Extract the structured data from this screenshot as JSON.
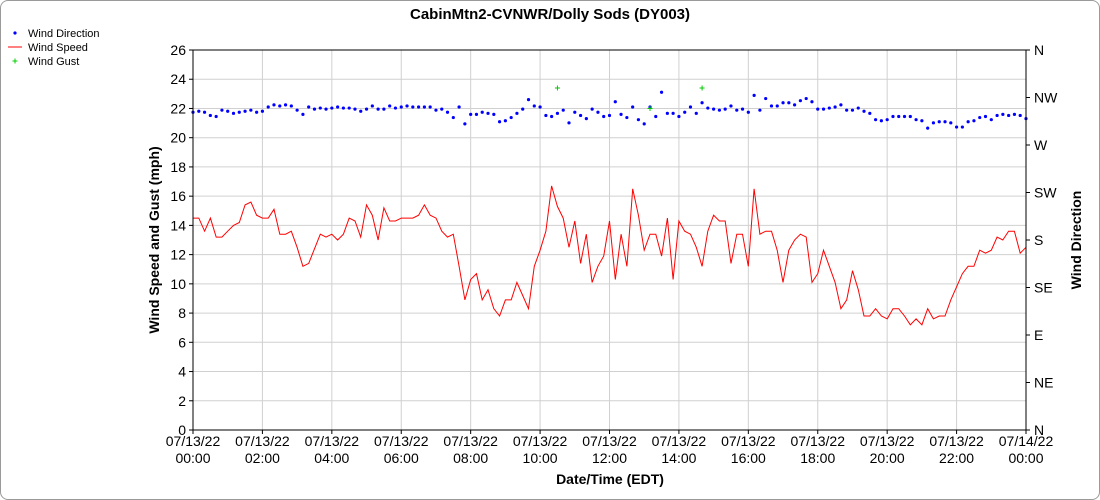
{
  "chart_data": {
    "type": "line",
    "title": "CabinMtn2-CVNWR/Dolly Sods (DY003)",
    "xlabel": "Date/Time (EDT)",
    "ylabel": "Wind Speed and Gust (mph)",
    "y2label": "Wind Direction",
    "x_ticks": [
      [
        "07/13/22",
        "00:00"
      ],
      [
        "07/13/22",
        "02:00"
      ],
      [
        "07/13/22",
        "04:00"
      ],
      [
        "07/13/22",
        "06:00"
      ],
      [
        "07/13/22",
        "08:00"
      ],
      [
        "07/13/22",
        "10:00"
      ],
      [
        "07/13/22",
        "12:00"
      ],
      [
        "07/13/22",
        "14:00"
      ],
      [
        "07/13/22",
        "16:00"
      ],
      [
        "07/13/22",
        "18:00"
      ],
      [
        "07/13/22",
        "20:00"
      ],
      [
        "07/13/22",
        "22:00"
      ],
      [
        "07/14/22",
        "00:00"
      ]
    ],
    "x_range_hours": [
      0,
      24
    ],
    "ylim": [
      0,
      26
    ],
    "y_ticks": [
      0,
      2,
      4,
      6,
      8,
      10,
      12,
      14,
      16,
      18,
      20,
      22,
      24,
      26
    ],
    "y2_ticks": [
      "N",
      "NE",
      "E",
      "SE",
      "S",
      "SW",
      "W",
      "NW",
      "N"
    ],
    "grid": true,
    "legend_position": "top-left",
    "legend": [
      {
        "name": "Wind Direction",
        "marker": "dot",
        "color": "#0000ff"
      },
      {
        "name": "Wind Speed",
        "marker": "line",
        "color": "#ff0000"
      },
      {
        "name": "Wind Gust",
        "marker": "plus",
        "color": "#00cc00"
      }
    ],
    "series": [
      {
        "name": "Wind Speed",
        "color": "#ff0000",
        "t_hours": [
          0,
          0.167,
          0.333,
          0.5,
          0.667,
          0.833,
          1,
          1.167,
          1.333,
          1.5,
          1.667,
          1.833,
          2,
          2.167,
          2.333,
          2.5,
          2.667,
          2.833,
          3,
          3.167,
          3.333,
          3.5,
          3.667,
          3.833,
          4,
          4.167,
          4.333,
          4.5,
          4.667,
          4.833,
          5,
          5.167,
          5.333,
          5.5,
          5.667,
          5.833,
          6,
          6.167,
          6.333,
          6.5,
          6.667,
          6.833,
          7,
          7.167,
          7.333,
          7.5,
          7.667,
          7.833,
          8,
          8.167,
          8.333,
          8.5,
          8.667,
          8.833,
          9,
          9.167,
          9.333,
          9.5,
          9.667,
          9.833,
          10,
          10.167,
          10.333,
          10.5,
          10.667,
          10.833,
          11,
          11.167,
          11.333,
          11.5,
          11.667,
          11.833,
          12,
          12.167,
          12.333,
          12.5,
          12.667,
          12.833,
          13,
          13.167,
          13.333,
          13.5,
          13.667,
          13.833,
          14,
          14.167,
          14.333,
          14.5,
          14.667,
          14.833,
          15,
          15.167,
          15.333,
          15.5,
          15.667,
          15.833,
          16,
          16.167,
          16.333,
          16.5,
          16.667,
          16.833,
          17,
          17.167,
          17.333,
          17.5,
          17.667,
          17.833,
          18,
          18.167,
          18.333,
          18.5,
          18.667,
          18.833,
          19,
          19.167,
          19.333,
          19.5,
          19.667,
          19.833,
          20,
          20.167,
          20.333,
          20.5,
          20.667,
          20.833,
          21,
          21.167,
          21.333,
          21.5,
          21.667,
          21.833,
          22,
          22.167,
          22.333,
          22.5,
          22.667,
          22.833,
          23,
          23.167,
          23.333,
          23.5,
          23.667,
          23.833,
          24
        ],
        "values": [
          14.5,
          14.5,
          13.6,
          14.5,
          13.2,
          13.2,
          13.6,
          14.0,
          14.2,
          15.4,
          15.6,
          14.7,
          14.5,
          14.5,
          15.1,
          13.4,
          13.4,
          13.6,
          12.5,
          11.2,
          11.4,
          12.4,
          13.4,
          13.2,
          13.4,
          13.0,
          13.4,
          14.5,
          14.3,
          13.2,
          15.4,
          14.7,
          13.0,
          15.2,
          14.3,
          14.3,
          14.5,
          14.5,
          14.5,
          14.7,
          15.4,
          14.7,
          14.5,
          13.6,
          13.2,
          13.4,
          11.2,
          8.9,
          10.3,
          10.7,
          8.9,
          9.6,
          8.3,
          7.8,
          8.9,
          8.9,
          10.1,
          9.2,
          8.3,
          11.2,
          12.3,
          13.6,
          16.7,
          15.3,
          14.5,
          12.5,
          14.3,
          11.4,
          13.4,
          10.1,
          11.2,
          11.9,
          14.3,
          10.3,
          13.4,
          11.2,
          16.5,
          14.7,
          12.3,
          13.4,
          13.4,
          11.9,
          14.5,
          10.3,
          14.3,
          13.6,
          13.4,
          12.5,
          11.2,
          13.6,
          14.7,
          14.3,
          14.3,
          11.4,
          13.4,
          13.4,
          11.2,
          16.5,
          13.4,
          13.6,
          13.6,
          12.3,
          10.1,
          12.3,
          13.0,
          13.4,
          13.2,
          10.1,
          10.7,
          12.3,
          11.2,
          10.1,
          8.3,
          8.9,
          10.9,
          9.6,
          7.8,
          7.8,
          8.3,
          7.8,
          7.6,
          8.3,
          8.3,
          7.8,
          7.2,
          7.6,
          7.2,
          8.3,
          7.6,
          7.8,
          7.8,
          8.9,
          9.8,
          10.7,
          11.2,
          11.2,
          12.3,
          12.1,
          12.3,
          13.2,
          13.0,
          13.6,
          13.6,
          12.1,
          12.5
        ]
      },
      {
        "name": "Wind Direction",
        "color": "#0000ff",
        "scale": "y2",
        "t_hours": [
          0,
          0.167,
          0.333,
          0.5,
          0.667,
          0.833,
          1,
          1.167,
          1.333,
          1.5,
          1.667,
          1.833,
          2,
          2.167,
          2.333,
          2.5,
          2.667,
          2.833,
          3,
          3.167,
          3.333,
          3.5,
          3.667,
          3.833,
          4,
          4.167,
          4.333,
          4.5,
          4.667,
          4.833,
          5,
          5.167,
          5.333,
          5.5,
          5.667,
          5.833,
          6,
          6.167,
          6.333,
          6.5,
          6.667,
          6.833,
          7,
          7.167,
          7.333,
          7.5,
          7.667,
          7.833,
          8,
          8.167,
          8.333,
          8.5,
          8.667,
          8.833,
          9,
          9.167,
          9.333,
          9.5,
          9.667,
          9.833,
          10,
          10.167,
          10.333,
          10.5,
          10.667,
          10.833,
          11,
          11.167,
          11.333,
          11.5,
          11.667,
          11.833,
          12,
          12.167,
          12.333,
          12.5,
          12.667,
          12.833,
          13,
          13.167,
          13.333,
          13.5,
          13.667,
          13.833,
          14,
          14.167,
          14.333,
          14.5,
          14.667,
          14.833,
          15,
          15.167,
          15.333,
          15.5,
          15.667,
          15.833,
          16,
          16.167,
          16.333,
          16.5,
          16.667,
          16.833,
          17,
          17.167,
          17.333,
          17.5,
          17.667,
          17.833,
          18,
          18.167,
          18.333,
          18.5,
          18.667,
          18.833,
          19,
          19.167,
          19.333,
          19.5,
          19.667,
          19.833,
          20,
          20.167,
          20.333,
          20.5,
          20.667,
          20.833,
          21,
          21.167,
          21.333,
          21.5,
          21.667,
          21.833,
          22,
          22.167,
          22.333,
          22.5,
          22.667,
          22.833,
          23,
          23.167,
          23.333,
          23.5,
          23.667,
          23.833,
          24
        ],
        "values": [
          301,
          302,
          301,
          298,
          297,
          303,
          302,
          300,
          301,
          302,
          303,
          301,
          302,
          306,
          308,
          307,
          308,
          307,
          303,
          299,
          306,
          304,
          305,
          304,
          305,
          306,
          305,
          305,
          304,
          302,
          304,
          307,
          304,
          304,
          307,
          305,
          306,
          307,
          306,
          306,
          306,
          306,
          303,
          304,
          301,
          296,
          306,
          290,
          299,
          299,
          301,
          300,
          299,
          292,
          293,
          296,
          300,
          304,
          313,
          307,
          306,
          298,
          297,
          300,
          303,
          291,
          301,
          298,
          295,
          304,
          301,
          297,
          298,
          311,
          299,
          296,
          306,
          294,
          290,
          306,
          297,
          320,
          300,
          300,
          297,
          301,
          306,
          300,
          310,
          305,
          304,
          303,
          304,
          307,
          303,
          304,
          301,
          317,
          303,
          314,
          307,
          307,
          310,
          310,
          308,
          312,
          314,
          311,
          304,
          304,
          305,
          306,
          308,
          303,
          303,
          305,
          302,
          300,
          294,
          293,
          294,
          297,
          297,
          297,
          297,
          294,
          293,
          286,
          291,
          292,
          292,
          291,
          287,
          287,
          292,
          293,
          296,
          297,
          294,
          298,
          299,
          298,
          299,
          298,
          295
        ]
      },
      {
        "name": "Wind Gust",
        "color": "#00cc00",
        "t_hours": [
          10.5,
          13.167,
          14.667
        ],
        "values": [
          23.4,
          22.0,
          23.4
        ]
      }
    ]
  }
}
